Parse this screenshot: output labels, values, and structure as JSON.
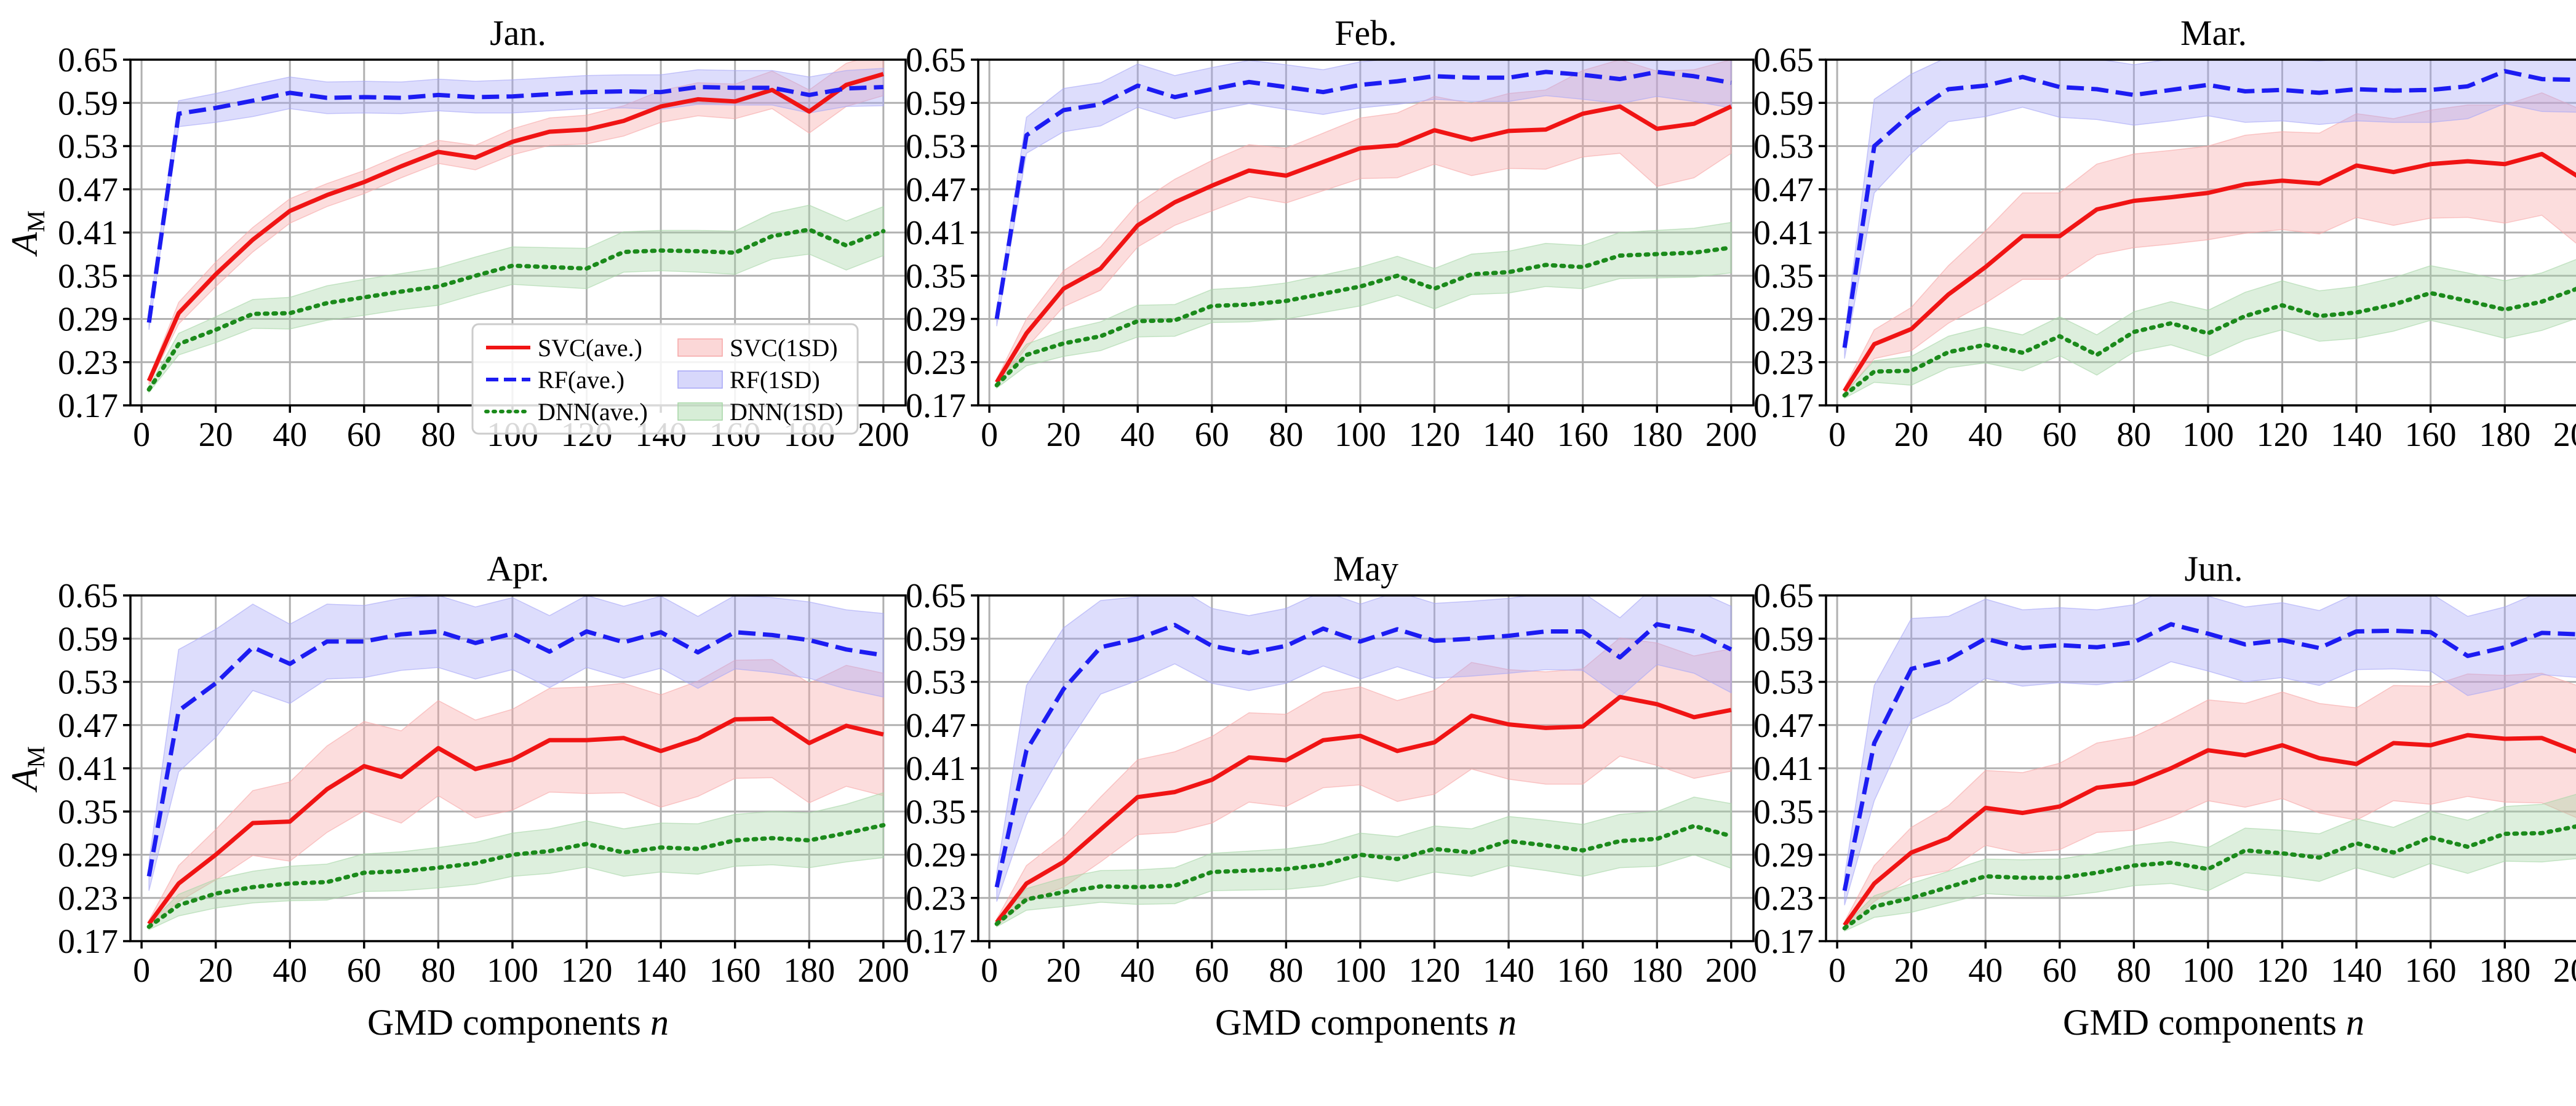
{
  "chart_data": {
    "type": "line",
    "ylabel_main": "A",
    "ylabel_sub": "M",
    "xlabel_main": "GMD components ",
    "xlabel_var": "n",
    "ylim": [
      0.17,
      0.65
    ],
    "yticks": [
      "0.17",
      "0.23",
      "0.29",
      "0.35",
      "0.41",
      "0.47",
      "0.53",
      "0.59",
      "0.65"
    ],
    "xlim": [
      -3,
      206
    ],
    "xticks": [
      "0",
      "20",
      "40",
      "60",
      "80",
      "100",
      "120",
      "140",
      "160",
      "180",
      "200"
    ],
    "x": [
      2,
      10,
      20,
      30,
      40,
      50,
      60,
      70,
      80,
      90,
      100,
      110,
      120,
      130,
      140,
      150,
      160,
      170,
      180,
      190,
      200
    ],
    "legend": {
      "position": "lower-right (Jan. panel)",
      "entries": [
        "SVC(ave.)",
        "SVC(1SD)",
        "RF(ave.)",
        "RF(1SD)",
        "DNN(ave.)",
        "DNN(1SD)"
      ]
    },
    "colors": {
      "svc": "#f01414",
      "svc_band": "#f6a6a6",
      "rf": "#1c1cf2",
      "rf_band": "#a6a6f6",
      "dnn": "#1b8a1b",
      "dnn_band": "#a6d6a6"
    },
    "panels": [
      {
        "title": "Jan.",
        "series": [
          {
            "name": "SVC",
            "values": [
              0.204,
              0.298,
              0.352,
              0.4,
              0.44,
              0.462,
              0.48,
              0.502,
              0.522,
              0.514,
              0.536,
              0.55,
              0.553,
              0.565,
              0.585,
              0.595,
              0.592,
              0.608,
              0.578,
              0.615,
              0.63
            ],
            "sd": [
              0.005,
              0.015,
              0.017,
              0.017,
              0.017,
              0.016,
              0.016,
              0.016,
              0.016,
              0.017,
              0.018,
              0.019,
              0.02,
              0.021,
              0.022,
              0.023,
              0.024,
              0.026,
              0.03,
              0.03,
              0.03
            ]
          },
          {
            "name": "RF",
            "values": [
              0.285,
              0.575,
              0.583,
              0.593,
              0.604,
              0.597,
              0.598,
              0.597,
              0.601,
              0.598,
              0.599,
              0.602,
              0.605,
              0.606,
              0.605,
              0.612,
              0.611,
              0.611,
              0.601,
              0.61,
              0.612
            ],
            "sd": [
              0.01,
              0.018,
              0.02,
              0.022,
              0.022,
              0.022,
              0.022,
              0.022,
              0.022,
              0.022,
              0.023,
              0.023,
              0.023,
              0.023,
              0.024,
              0.024,
              0.024,
              0.024,
              0.025,
              0.025,
              0.026
            ]
          },
          {
            "name": "DNN",
            "values": [
              0.192,
              0.255,
              0.275,
              0.297,
              0.298,
              0.312,
              0.32,
              0.328,
              0.335,
              0.35,
              0.364,
              0.362,
              0.36,
              0.383,
              0.385,
              0.384,
              0.382,
              0.405,
              0.414,
              0.392,
              0.412
            ],
            "sd": [
              0.004,
              0.015,
              0.018,
              0.02,
              0.022,
              0.024,
              0.025,
              0.025,
              0.026,
              0.026,
              0.026,
              0.027,
              0.028,
              0.028,
              0.028,
              0.029,
              0.03,
              0.032,
              0.034,
              0.034,
              0.034
            ]
          }
        ]
      },
      {
        "title": "Feb.",
        "series": [
          {
            "name": "SVC",
            "values": [
              0.202,
              0.27,
              0.332,
              0.36,
              0.42,
              0.452,
              0.475,
              0.496,
              0.489,
              0.508,
              0.527,
              0.531,
              0.552,
              0.539,
              0.551,
              0.553,
              0.575,
              0.585,
              0.554,
              0.561,
              0.585
            ],
            "sd": [
              0.005,
              0.02,
              0.025,
              0.03,
              0.03,
              0.032,
              0.035,
              0.036,
              0.038,
              0.04,
              0.042,
              0.045,
              0.047,
              0.05,
              0.052,
              0.055,
              0.06,
              0.065,
              0.08,
              0.075,
              0.065
            ]
          },
          {
            "name": "RF",
            "values": [
              0.29,
              0.545,
              0.58,
              0.588,
              0.614,
              0.598,
              0.609,
              0.619,
              0.612,
              0.605,
              0.615,
              0.62,
              0.627,
              0.625,
              0.625,
              0.633,
              0.629,
              0.623,
              0.633,
              0.627,
              0.618
            ],
            "sd": [
              0.01,
              0.025,
              0.03,
              0.03,
              0.03,
              0.03,
              0.03,
              0.03,
              0.031,
              0.031,
              0.032,
              0.032,
              0.032,
              0.033,
              0.033,
              0.033,
              0.034,
              0.034,
              0.034,
              0.035,
              0.035
            ]
          },
          {
            "name": "DNN",
            "values": [
              0.198,
              0.24,
              0.256,
              0.266,
              0.287,
              0.288,
              0.308,
              0.31,
              0.315,
              0.325,
              0.335,
              0.35,
              0.332,
              0.352,
              0.355,
              0.365,
              0.362,
              0.378,
              0.38,
              0.382,
              0.389
            ],
            "sd": [
              0.004,
              0.015,
              0.018,
              0.02,
              0.022,
              0.022,
              0.023,
              0.024,
              0.025,
              0.026,
              0.027,
              0.027,
              0.028,
              0.028,
              0.029,
              0.03,
              0.03,
              0.032,
              0.033,
              0.034,
              0.035
            ]
          }
        ]
      },
      {
        "title": "Mar.",
        "series": [
          {
            "name": "SVC",
            "values": [
              0.19,
              0.255,
              0.276,
              0.324,
              0.362,
              0.405,
              0.405,
              0.442,
              0.454,
              0.459,
              0.465,
              0.477,
              0.482,
              0.478,
              0.503,
              0.494,
              0.505,
              0.509,
              0.505,
              0.519,
              0.487
            ],
            "sd": [
              0.005,
              0.02,
              0.03,
              0.04,
              0.05,
              0.06,
              0.06,
              0.063,
              0.065,
              0.065,
              0.065,
              0.068,
              0.068,
              0.07,
              0.072,
              0.074,
              0.075,
              0.078,
              0.082,
              0.085,
              0.095
            ]
          },
          {
            "name": "RF",
            "values": [
              0.25,
              0.53,
              0.575,
              0.609,
              0.614,
              0.626,
              0.612,
              0.609,
              0.601,
              0.608,
              0.615,
              0.606,
              0.608,
              0.604,
              0.609,
              0.607,
              0.608,
              0.613,
              0.634,
              0.623,
              0.622
            ],
            "sd": [
              0.015,
              0.065,
              0.055,
              0.045,
              0.043,
              0.042,
              0.042,
              0.042,
              0.042,
              0.043,
              0.043,
              0.043,
              0.043,
              0.044,
              0.044,
              0.044,
              0.045,
              0.045,
              0.045,
              0.045,
              0.045
            ]
          },
          {
            "name": "DNN",
            "values": [
              0.184,
              0.217,
              0.218,
              0.244,
              0.254,
              0.243,
              0.266,
              0.24,
              0.272,
              0.284,
              0.27,
              0.294,
              0.309,
              0.294,
              0.299,
              0.31,
              0.326,
              0.315,
              0.303,
              0.314,
              0.333
            ],
            "sd": [
              0.004,
              0.015,
              0.02,
              0.022,
              0.025,
              0.025,
              0.027,
              0.028,
              0.028,
              0.03,
              0.032,
              0.033,
              0.034,
              0.035,
              0.036,
              0.037,
              0.038,
              0.039,
              0.04,
              0.04,
              0.041
            ]
          }
        ]
      },
      {
        "title": "Apr.",
        "series": [
          {
            "name": "SVC",
            "values": [
              0.194,
              0.25,
              0.29,
              0.334,
              0.336,
              0.381,
              0.413,
              0.398,
              0.438,
              0.409,
              0.422,
              0.449,
              0.449,
              0.452,
              0.434,
              0.451,
              0.478,
              0.479,
              0.445,
              0.469,
              0.457
            ],
            "sd": [
              0.005,
              0.025,
              0.035,
              0.045,
              0.055,
              0.06,
              0.062,
              0.064,
              0.066,
              0.068,
              0.07,
              0.072,
              0.074,
              0.076,
              0.078,
              0.08,
              0.082,
              0.082,
              0.083,
              0.084,
              0.085
            ]
          },
          {
            "name": "RF",
            "values": [
              0.26,
              0.49,
              0.528,
              0.578,
              0.555,
              0.586,
              0.586,
              0.596,
              0.6,
              0.584,
              0.597,
              0.572,
              0.6,
              0.585,
              0.599,
              0.571,
              0.599,
              0.595,
              0.588,
              0.575,
              0.567
            ],
            "sd": [
              0.02,
              0.085,
              0.075,
              0.06,
              0.055,
              0.052,
              0.05,
              0.05,
              0.05,
              0.05,
              0.05,
              0.05,
              0.05,
              0.05,
              0.05,
              0.05,
              0.051,
              0.052,
              0.053,
              0.055,
              0.058
            ]
          },
          {
            "name": "DNN",
            "values": [
              0.19,
              0.22,
              0.236,
              0.245,
              0.25,
              0.252,
              0.265,
              0.267,
              0.272,
              0.278,
              0.29,
              0.295,
              0.305,
              0.293,
              0.3,
              0.298,
              0.31,
              0.313,
              0.31,
              0.32,
              0.331
            ],
            "sd": [
              0.004,
              0.015,
              0.02,
              0.022,
              0.024,
              0.025,
              0.026,
              0.027,
              0.028,
              0.029,
              0.03,
              0.031,
              0.032,
              0.033,
              0.034,
              0.035,
              0.036,
              0.037,
              0.038,
              0.04,
              0.045
            ]
          }
        ]
      },
      {
        "title": "May",
        "series": [
          {
            "name": "SVC",
            "values": [
              0.196,
              0.25,
              0.28,
              0.325,
              0.37,
              0.377,
              0.394,
              0.425,
              0.421,
              0.449,
              0.455,
              0.434,
              0.446,
              0.483,
              0.471,
              0.466,
              0.468,
              0.509,
              0.499,
              0.481,
              0.491
            ],
            "sd": [
              0.005,
              0.025,
              0.035,
              0.045,
              0.052,
              0.056,
              0.06,
              0.062,
              0.064,
              0.066,
              0.068,
              0.07,
              0.072,
              0.074,
              0.076,
              0.078,
              0.08,
              0.082,
              0.085,
              0.085,
              0.085
            ]
          },
          {
            "name": "RF",
            "values": [
              0.245,
              0.435,
              0.52,
              0.578,
              0.59,
              0.609,
              0.58,
              0.57,
              0.58,
              0.604,
              0.586,
              0.603,
              0.587,
              0.59,
              0.594,
              0.6,
              0.6,
              0.564,
              0.61,
              0.6,
              0.575
            ],
            "sd": [
              0.02,
              0.09,
              0.085,
              0.065,
              0.058,
              0.054,
              0.052,
              0.052,
              0.052,
              0.052,
              0.052,
              0.052,
              0.052,
              0.052,
              0.052,
              0.053,
              0.054,
              0.055,
              0.056,
              0.058,
              0.06
            ]
          },
          {
            "name": "DNN",
            "values": [
              0.194,
              0.228,
              0.238,
              0.246,
              0.245,
              0.247,
              0.266,
              0.268,
              0.27,
              0.276,
              0.29,
              0.284,
              0.298,
              0.293,
              0.309,
              0.303,
              0.296,
              0.309,
              0.312,
              0.33,
              0.316
            ],
            "sd": [
              0.004,
              0.015,
              0.02,
              0.022,
              0.024,
              0.025,
              0.026,
              0.027,
              0.028,
              0.029,
              0.03,
              0.031,
              0.032,
              0.033,
              0.034,
              0.035,
              0.036,
              0.037,
              0.038,
              0.04,
              0.045
            ]
          }
        ]
      },
      {
        "title": "Jun.",
        "series": [
          {
            "name": "SVC",
            "values": [
              0.192,
              0.25,
              0.293,
              0.313,
              0.355,
              0.348,
              0.357,
              0.383,
              0.389,
              0.41,
              0.435,
              0.428,
              0.442,
              0.424,
              0.416,
              0.445,
              0.442,
              0.456,
              0.451,
              0.452,
              0.432
            ],
            "sd": [
              0.005,
              0.025,
              0.035,
              0.045,
              0.052,
              0.056,
              0.06,
              0.062,
              0.065,
              0.068,
              0.07,
              0.072,
              0.074,
              0.076,
              0.078,
              0.08,
              0.082,
              0.085,
              0.088,
              0.09,
              0.092
            ]
          },
          {
            "name": "RF",
            "values": [
              0.24,
              0.445,
              0.548,
              0.561,
              0.59,
              0.577,
              0.581,
              0.578,
              0.585,
              0.61,
              0.597,
              0.582,
              0.588,
              0.577,
              0.6,
              0.601,
              0.599,
              0.566,
              0.578,
              0.598,
              0.596
            ],
            "sd": [
              0.02,
              0.08,
              0.07,
              0.06,
              0.055,
              0.053,
              0.052,
              0.052,
              0.052,
              0.052,
              0.052,
              0.052,
              0.052,
              0.052,
              0.053,
              0.053,
              0.054,
              0.055,
              0.056,
              0.058,
              0.06
            ]
          },
          {
            "name": "DNN",
            "values": [
              0.188,
              0.218,
              0.23,
              0.245,
              0.26,
              0.258,
              0.258,
              0.265,
              0.275,
              0.279,
              0.27,
              0.296,
              0.292,
              0.286,
              0.306,
              0.293,
              0.314,
              0.301,
              0.319,
              0.32,
              0.33
            ],
            "sd": [
              0.004,
              0.015,
              0.02,
              0.022,
              0.024,
              0.025,
              0.026,
              0.027,
              0.028,
              0.029,
              0.03,
              0.031,
              0.032,
              0.033,
              0.034,
              0.035,
              0.036,
              0.037,
              0.038,
              0.04,
              0.045
            ]
          }
        ]
      }
    ]
  }
}
